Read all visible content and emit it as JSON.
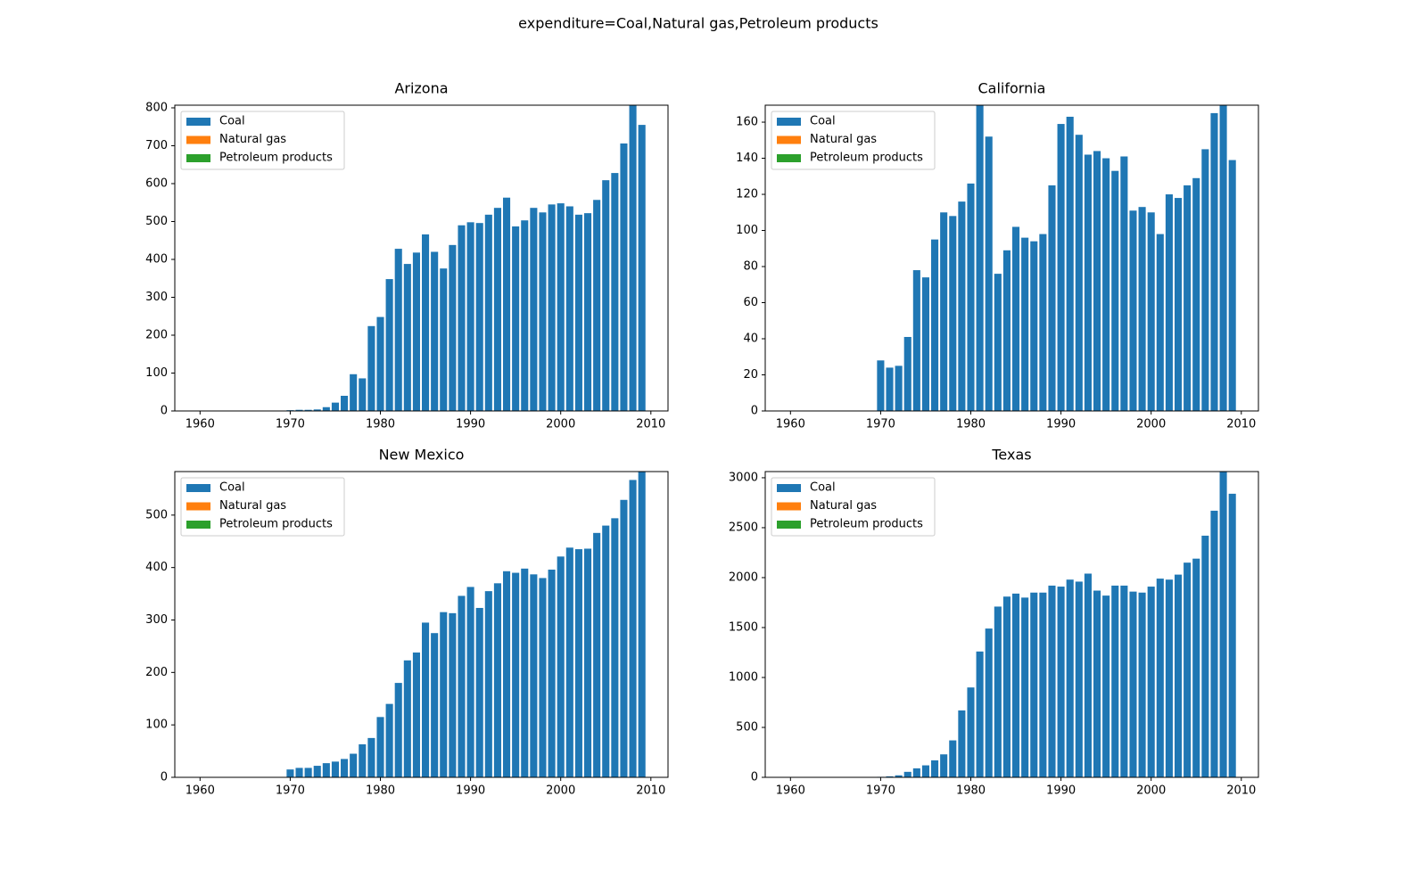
{
  "title": "expenditure=Coal,Natural gas,Petroleum products",
  "chart_data": [
    {
      "type": "bar",
      "title": "Arizona",
      "x": [
        1970,
        1971,
        1972,
        1973,
        1974,
        1975,
        1976,
        1977,
        1978,
        1979,
        1980,
        1981,
        1982,
        1983,
        1984,
        1985,
        1986,
        1987,
        1988,
        1989,
        1990,
        1991,
        1992,
        1993,
        1994,
        1995,
        1996,
        1997,
        1998,
        1999,
        2000,
        2001,
        2002,
        2003,
        2004,
        2005,
        2006,
        2007,
        2008,
        2009
      ],
      "series": [
        {
          "name": "Coal",
          "color": "#1f77b4",
          "values": [
            2,
            3,
            3,
            4,
            10,
            22,
            40,
            97,
            86,
            224,
            248,
            348,
            428,
            388,
            418,
            466,
            420,
            376,
            438,
            490,
            498,
            496,
            518,
            536,
            563,
            487,
            503,
            536,
            524,
            545,
            548,
            540,
            518,
            522,
            557,
            609,
            628,
            706,
            830,
            755
          ]
        },
        {
          "name": "Natural gas",
          "color": "#ff7f0e",
          "values": [
            null,
            null,
            null,
            null,
            null,
            null,
            null,
            null,
            null,
            null,
            null,
            null,
            null,
            null,
            null,
            null,
            null,
            null,
            null,
            null,
            null,
            null,
            null,
            null,
            null,
            null,
            null,
            null,
            null,
            null,
            null,
            null,
            null,
            null,
            null,
            null,
            null,
            null,
            null,
            null
          ]
        },
        {
          "name": "Petroleum products",
          "color": "#2ca02c",
          "values": [
            null,
            null,
            null,
            null,
            null,
            null,
            null,
            null,
            null,
            null,
            null,
            null,
            null,
            null,
            null,
            null,
            null,
            null,
            null,
            null,
            null,
            null,
            null,
            null,
            null,
            null,
            null,
            null,
            null,
            null,
            null,
            null,
            null,
            null,
            null,
            null,
            null,
            null,
            null,
            null
          ]
        }
      ],
      "xlim": [
        1957.2,
        2011.9
      ],
      "xticks": [
        1960,
        1970,
        1980,
        1990,
        2000,
        2010
      ],
      "ylim": [
        0,
        807
      ],
      "yticks": [
        0,
        100,
        200,
        300,
        400,
        500,
        600,
        700,
        800
      ],
      "stacked": true,
      "legend": "upper left"
    },
    {
      "type": "bar",
      "title": "California",
      "x": [
        1970,
        1971,
        1972,
        1973,
        1974,
        1975,
        1976,
        1977,
        1978,
        1979,
        1980,
        1981,
        1982,
        1983,
        1984,
        1985,
        1986,
        1987,
        1988,
        1989,
        1990,
        1991,
        1992,
        1993,
        1994,
        1995,
        1996,
        1997,
        1998,
        1999,
        2000,
        2001,
        2002,
        2003,
        2004,
        2005,
        2006,
        2007,
        2008,
        2009
      ],
      "series": [
        {
          "name": "Coal",
          "color": "#1f77b4",
          "values": [
            28,
            24,
            25,
            41,
            78,
            74,
            95,
            110,
            108,
            116,
            126,
            175,
            152,
            76,
            89,
            102,
            96,
            94,
            98,
            125,
            159,
            163,
            153,
            142,
            144,
            140,
            133,
            141,
            111,
            113,
            110,
            98,
            120,
            118,
            125,
            129,
            145,
            165,
            175,
            139
          ]
        },
        {
          "name": "Natural gas",
          "color": "#ff7f0e",
          "values": [
            null,
            null,
            null,
            null,
            null,
            null,
            null,
            null,
            null,
            null,
            null,
            null,
            null,
            null,
            null,
            null,
            null,
            null,
            null,
            null,
            null,
            null,
            null,
            null,
            null,
            null,
            null,
            null,
            null,
            null,
            null,
            null,
            null,
            null,
            null,
            null,
            null,
            null,
            null,
            null
          ]
        },
        {
          "name": "Petroleum products",
          "color": "#2ca02c",
          "values": [
            null,
            null,
            null,
            null,
            null,
            null,
            null,
            null,
            null,
            null,
            null,
            null,
            null,
            null,
            null,
            null,
            null,
            null,
            null,
            null,
            null,
            null,
            null,
            null,
            null,
            null,
            null,
            null,
            null,
            null,
            null,
            null,
            null,
            null,
            null,
            null,
            null,
            null,
            null,
            null
          ]
        }
      ],
      "xlim": [
        1957.2,
        2011.9
      ],
      "xticks": [
        1960,
        1970,
        1980,
        1990,
        2000,
        2010
      ],
      "ylim": [
        0,
        169.4
      ],
      "yticks": [
        0,
        20,
        40,
        60,
        80,
        100,
        120,
        140,
        160
      ],
      "stacked": true,
      "legend": "upper left"
    },
    {
      "type": "bar",
      "title": "New Mexico",
      "x": [
        1970,
        1971,
        1972,
        1973,
        1974,
        1975,
        1976,
        1977,
        1978,
        1979,
        1980,
        1981,
        1982,
        1983,
        1984,
        1985,
        1986,
        1987,
        1988,
        1989,
        1990,
        1991,
        1992,
        1993,
        1994,
        1995,
        1996,
        1997,
        1998,
        1999,
        2000,
        2001,
        2002,
        2003,
        2004,
        2005,
        2006,
        2007,
        2008,
        2009
      ],
      "series": [
        {
          "name": "Coal",
          "color": "#1f77b4",
          "values": [
            15,
            18,
            18,
            22,
            27,
            30,
            35,
            45,
            63,
            75,
            115,
            140,
            180,
            223,
            238,
            295,
            275,
            315,
            313,
            346,
            363,
            323,
            355,
            370,
            393,
            390,
            398,
            387,
            380,
            396,
            421,
            438,
            435,
            436,
            466,
            480,
            494,
            529,
            567,
            600
          ]
        },
        {
          "name": "Natural gas",
          "color": "#ff7f0e",
          "values": [
            null,
            null,
            null,
            null,
            null,
            null,
            null,
            null,
            null,
            null,
            null,
            null,
            null,
            null,
            null,
            null,
            null,
            null,
            null,
            null,
            null,
            null,
            null,
            null,
            null,
            null,
            null,
            null,
            null,
            null,
            null,
            null,
            null,
            null,
            null,
            null,
            null,
            null,
            null,
            null
          ]
        },
        {
          "name": "Petroleum products",
          "color": "#2ca02c",
          "values": [
            null,
            null,
            null,
            null,
            null,
            null,
            null,
            null,
            null,
            null,
            null,
            null,
            null,
            null,
            null,
            null,
            null,
            null,
            null,
            null,
            null,
            null,
            null,
            null,
            null,
            null,
            null,
            null,
            null,
            null,
            null,
            null,
            null,
            null,
            null,
            null,
            null,
            null,
            null,
            null
          ]
        }
      ],
      "xlim": [
        1957.2,
        2011.9
      ],
      "xticks": [
        1960,
        1970,
        1980,
        1990,
        2000,
        2010
      ],
      "ylim": [
        0,
        583
      ],
      "yticks": [
        0,
        100,
        200,
        300,
        400,
        500
      ],
      "stacked": true,
      "legend": "upper left"
    },
    {
      "type": "bar",
      "title": "Texas",
      "x": [
        1970,
        1971,
        1972,
        1973,
        1974,
        1975,
        1976,
        1977,
        1978,
        1979,
        1980,
        1981,
        1982,
        1983,
        1984,
        1985,
        1986,
        1987,
        1988,
        1989,
        1990,
        1991,
        1992,
        1993,
        1994,
        1995,
        1996,
        1997,
        1998,
        1999,
        2000,
        2001,
        2002,
        2003,
        2004,
        2005,
        2006,
        2007,
        2008,
        2009
      ],
      "series": [
        {
          "name": "Coal",
          "color": "#1f77b4",
          "values": [
            5,
            10,
            20,
            55,
            90,
            120,
            170,
            230,
            370,
            670,
            900,
            1260,
            1490,
            1710,
            1810,
            1840,
            1800,
            1850,
            1850,
            1920,
            1910,
            1980,
            1960,
            2040,
            1870,
            1820,
            1920,
            1920,
            1860,
            1850,
            1910,
            1990,
            1980,
            2030,
            2150,
            2190,
            2420,
            2670,
            3100,
            2840
          ]
        },
        {
          "name": "Natural gas",
          "color": "#ff7f0e",
          "values": [
            null,
            null,
            null,
            null,
            null,
            null,
            null,
            null,
            null,
            null,
            null,
            null,
            null,
            null,
            null,
            null,
            null,
            null,
            null,
            null,
            null,
            null,
            null,
            null,
            null,
            null,
            null,
            null,
            null,
            null,
            null,
            null,
            null,
            null,
            null,
            null,
            null,
            null,
            null,
            null
          ]
        },
        {
          "name": "Petroleum products",
          "color": "#2ca02c",
          "values": [
            null,
            null,
            null,
            null,
            null,
            null,
            null,
            null,
            null,
            null,
            null,
            null,
            null,
            null,
            null,
            null,
            null,
            null,
            null,
            null,
            null,
            null,
            null,
            null,
            null,
            null,
            null,
            null,
            null,
            null,
            null,
            null,
            null,
            null,
            null,
            null,
            null,
            null,
            null,
            null
          ]
        }
      ],
      "xlim": [
        1957.2,
        2011.9
      ],
      "xticks": [
        1960,
        1970,
        1980,
        1990,
        2000,
        2010
      ],
      "ylim": [
        0,
        3062
      ],
      "yticks": [
        0,
        500,
        1000,
        1500,
        2000,
        2500,
        3000
      ],
      "stacked": true,
      "legend": "upper left"
    }
  ]
}
